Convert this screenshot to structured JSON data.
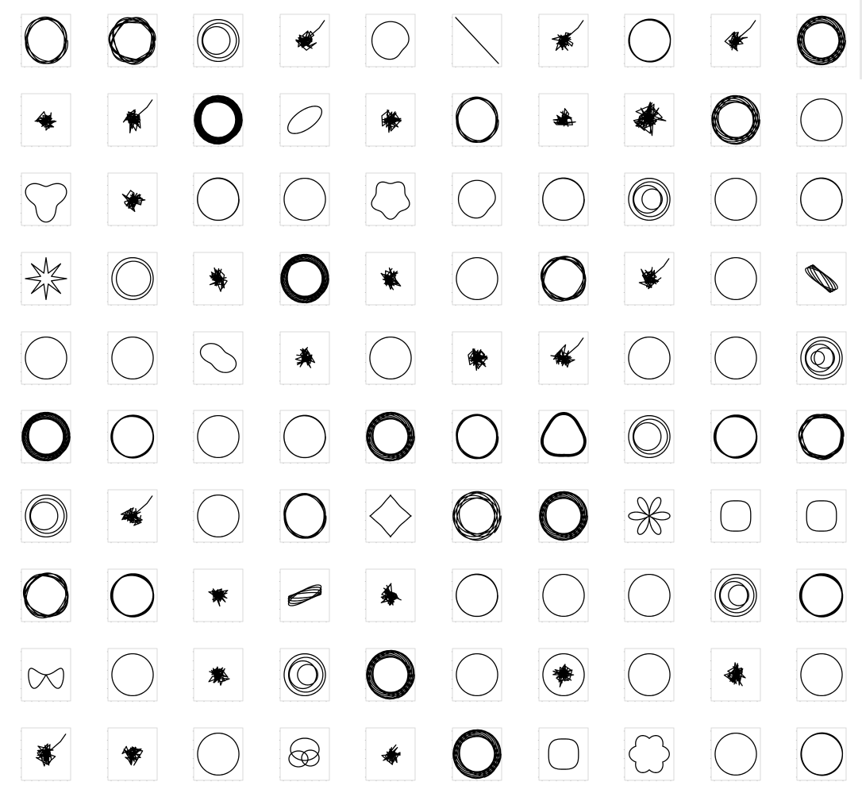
{
  "layout": {
    "rows": 10,
    "cols": 10
  },
  "chart_data": {
    "type": "line",
    "panels": [
      {
        "shape": "ellipse",
        "loops": 5,
        "wobble": 0.08
      },
      {
        "shape": "ellipse",
        "loops": 7,
        "wobble": 0.1
      },
      {
        "shape": "nested",
        "rings": 3
      },
      {
        "shape": "chaos",
        "seed": 1,
        "tail": true
      },
      {
        "shape": "cardioid"
      },
      {
        "shape": "line",
        "slope": -1
      },
      {
        "shape": "chaos",
        "seed": 2,
        "tail": true
      },
      {
        "shape": "ellipse",
        "loops": 3,
        "wobble": 0.03
      },
      {
        "shape": "chaos",
        "seed": 3,
        "tail": true
      },
      {
        "shape": "rosette",
        "loops": 9
      },
      {
        "shape": "chaos",
        "seed": 4
      },
      {
        "shape": "chaos",
        "seed": 5,
        "tail": true
      },
      {
        "shape": "rosette",
        "loops": 14
      },
      {
        "shape": "tilted",
        "angle": -35
      },
      {
        "shape": "chaos",
        "seed": 6
      },
      {
        "shape": "ellipse",
        "loops": 5,
        "wobble": 0.06
      },
      {
        "shape": "chaos",
        "seed": 7
      },
      {
        "shape": "chaos",
        "seed": 8,
        "star": true
      },
      {
        "shape": "rosette",
        "loops": 8
      },
      {
        "shape": "ellipse",
        "loops": 1,
        "wobble": 0
      },
      {
        "shape": "triangle"
      },
      {
        "shape": "chaos",
        "seed": 9
      },
      {
        "shape": "ellipse",
        "loops": 2,
        "wobble": 0.01
      },
      {
        "shape": "ellipse",
        "loops": 1,
        "wobble": 0
      },
      {
        "shape": "pentagon"
      },
      {
        "shape": "cardioid"
      },
      {
        "shape": "ellipse",
        "loops": 2,
        "wobble": 0.01
      },
      {
        "shape": "nested",
        "rings": 4
      },
      {
        "shape": "ellipse",
        "loops": 1,
        "wobble": 0
      },
      {
        "shape": "ellipse",
        "loops": 2,
        "wobble": 0.01
      },
      {
        "shape": "star",
        "points": 8
      },
      {
        "shape": "nested",
        "rings": 2
      },
      {
        "shape": "chaos",
        "seed": 10
      },
      {
        "shape": "rosette",
        "loops": 12
      },
      {
        "shape": "chaos",
        "seed": 11
      },
      {
        "shape": "ellipse",
        "loops": 1,
        "wobble": 0
      },
      {
        "shape": "ellipse",
        "loops": 6,
        "wobble": 0.08
      },
      {
        "shape": "chaos",
        "seed": 12,
        "tail": true
      },
      {
        "shape": "ellipse",
        "loops": 1,
        "wobble": 0
      },
      {
        "shape": "bundle",
        "angle": 32
      },
      {
        "shape": "ellipse",
        "loops": 1,
        "wobble": 0
      },
      {
        "shape": "ellipse",
        "loops": 1,
        "wobble": 0
      },
      {
        "shape": "bean"
      },
      {
        "shape": "chaos",
        "seed": 13
      },
      {
        "shape": "ellipse",
        "loops": 1,
        "wobble": 0
      },
      {
        "shape": "chaos",
        "seed": 14
      },
      {
        "shape": "chaos",
        "seed": 15,
        "tail": true
      },
      {
        "shape": "ellipse",
        "loops": 1,
        "wobble": 0
      },
      {
        "shape": "ellipse",
        "loops": 1,
        "wobble": 0
      },
      {
        "shape": "nested",
        "rings": 5
      },
      {
        "shape": "rosette",
        "loops": 12
      },
      {
        "shape": "ellipse",
        "loops": 4,
        "wobble": 0.03
      },
      {
        "shape": "ellipse",
        "loops": 1,
        "wobble": 0
      },
      {
        "shape": "ellipse",
        "loops": 2,
        "wobble": 0.01
      },
      {
        "shape": "rosette",
        "loops": 10
      },
      {
        "shape": "ellipse",
        "loops": 5,
        "wobble": 0.04
      },
      {
        "shape": "ellipse",
        "loops": 8,
        "wobble": 0.1
      },
      {
        "shape": "nested",
        "rings": 3
      },
      {
        "shape": "ellipse",
        "loops": 4,
        "wobble": 0.04
      },
      {
        "shape": "ellipse",
        "loops": 7,
        "wobble": 0.07
      },
      {
        "shape": "nested",
        "rings": 3
      },
      {
        "shape": "chaos",
        "seed": 16,
        "tail": true
      },
      {
        "shape": "ellipse",
        "loops": 1,
        "wobble": 0
      },
      {
        "shape": "ellipse",
        "loops": 5,
        "wobble": 0.05
      },
      {
        "shape": "astroid"
      },
      {
        "shape": "rosette",
        "loops": 6
      },
      {
        "shape": "rosette",
        "loops": 10
      },
      {
        "shape": "flower",
        "petals": 6
      },
      {
        "shape": "rounded"
      },
      {
        "shape": "rounded"
      },
      {
        "shape": "ellipse",
        "loops": 6,
        "wobble": 0.08
      },
      {
        "shape": "ellipse",
        "loops": 4,
        "wobble": 0.04
      },
      {
        "shape": "chaos",
        "seed": 17
      },
      {
        "shape": "bundle",
        "angle": -30
      },
      {
        "shape": "chaos",
        "seed": 18
      },
      {
        "shape": "ellipse",
        "loops": 2,
        "wobble": 0.01
      },
      {
        "shape": "ellipse",
        "loops": 1,
        "wobble": 0
      },
      {
        "shape": "ellipse",
        "loops": 1,
        "wobble": 0
      },
      {
        "shape": "nested",
        "rings": 4
      },
      {
        "shape": "ellipse",
        "loops": 4,
        "wobble": 0.04
      },
      {
        "shape": "bow"
      },
      {
        "shape": "ellipse",
        "loops": 1,
        "wobble": 0
      },
      {
        "shape": "chaos",
        "seed": 19
      },
      {
        "shape": "nested",
        "rings": 4
      },
      {
        "shape": "rosette",
        "loops": 10
      },
      {
        "shape": "ellipse",
        "loops": 1,
        "wobble": 0
      },
      {
        "shape": "spiral",
        "seed": 20
      },
      {
        "shape": "ellipse",
        "loops": 1,
        "wobble": 0
      },
      {
        "shape": "chaos",
        "seed": 21
      },
      {
        "shape": "ellipse",
        "loops": 1,
        "wobble": 0
      },
      {
        "shape": "chaos",
        "seed": 22,
        "tail": true
      },
      {
        "shape": "chaos",
        "seed": 23
      },
      {
        "shape": "ellipse",
        "loops": 1,
        "wobble": 0
      },
      {
        "shape": "circles",
        "count": 3
      },
      {
        "shape": "chaos",
        "seed": 24
      },
      {
        "shape": "rosette",
        "loops": 10
      },
      {
        "shape": "rounded"
      },
      {
        "shape": "flower",
        "petals": 6,
        "outer": true
      },
      {
        "shape": "ellipse",
        "loops": 1,
        "wobble": 0
      },
      {
        "shape": "ellipse",
        "loops": 3,
        "wobble": 0.02
      }
    ]
  }
}
